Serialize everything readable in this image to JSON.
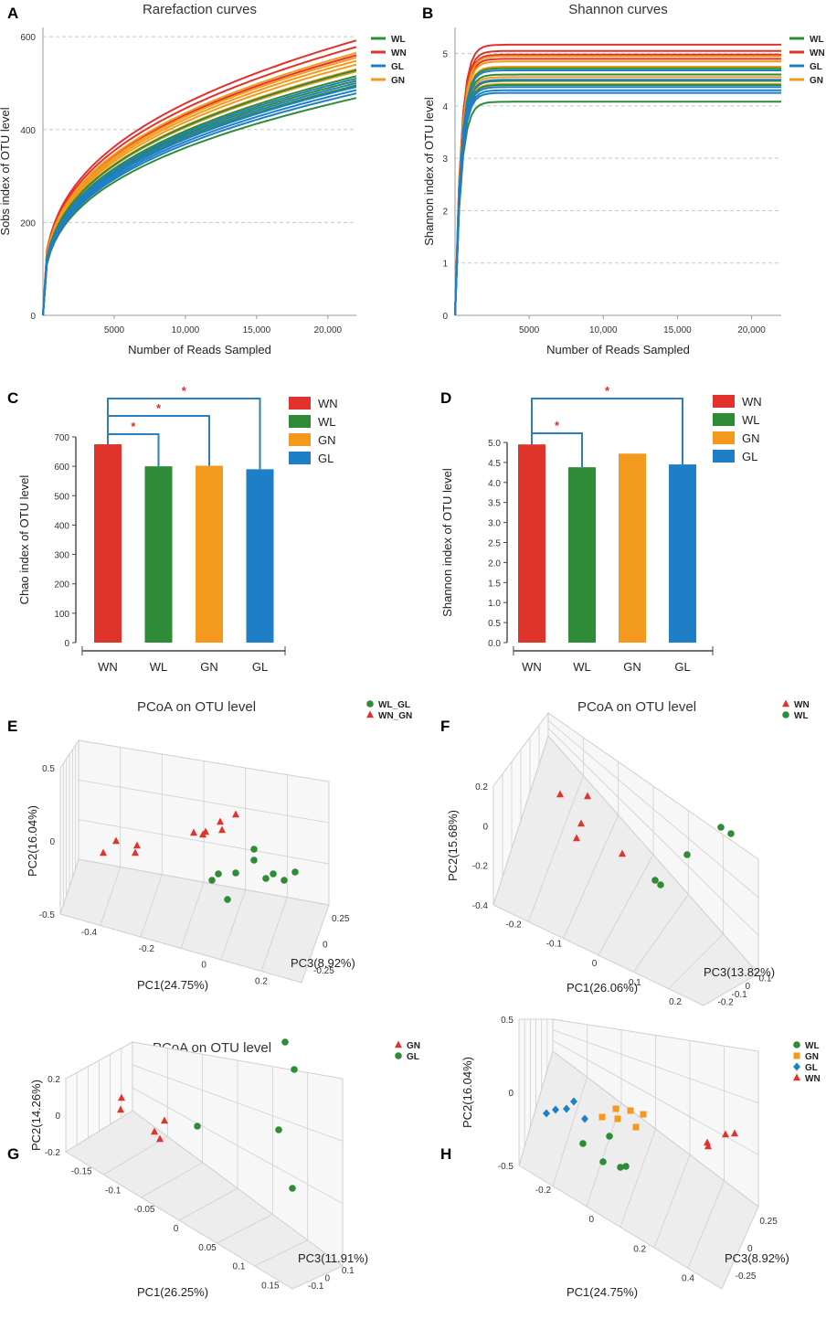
{
  "colors": {
    "WN": "#e0332b",
    "WL": "#2e8b36",
    "GN": "#f39a1e",
    "GL": "#1f7fc6",
    "bracket": "#2b7fbd",
    "star": "#d8312b"
  },
  "chart_data": [
    {
      "id": "A",
      "type": "line",
      "panel_label": "A",
      "title": "Rarefaction curves",
      "xlabel": "Number of Reads Sampled",
      "ylabel": "Sobs index of OTU level",
      "xlim": [
        0,
        22000
      ],
      "ylim": [
        0,
        620
      ],
      "x_ticks": [
        {
          "v": 5000,
          "label": "5000"
        },
        {
          "v": 10000,
          "label": "10,000"
        },
        {
          "v": 15000,
          "label": "15,000"
        },
        {
          "v": 20000,
          "label": "20,000"
        }
      ],
      "y_ticks": [
        {
          "v": 0,
          "label": "0"
        },
        {
          "v": 200,
          "label": "200"
        },
        {
          "v": 400,
          "label": "400"
        },
        {
          "v": 600,
          "label": "600"
        }
      ],
      "legend": [
        "WL",
        "WN",
        "GL",
        "GN"
      ],
      "series": [
        {
          "name": "WN",
          "final": [
            592,
            578,
            560
          ]
        },
        {
          "name": "GN",
          "final": [
            565,
            555,
            548,
            540,
            530,
            525
          ]
        },
        {
          "name": "WL",
          "final": [
            528,
            515,
            505,
            495,
            468
          ]
        },
        {
          "name": "GL",
          "final": [
            510,
            500,
            492,
            485,
            478
          ]
        }
      ]
    },
    {
      "id": "B",
      "type": "line",
      "panel_label": "B",
      "title": "Shannon curves",
      "xlabel": "Number of Reads Sampled",
      "ylabel": "Shannon index of OTU level",
      "xlim": [
        0,
        22000
      ],
      "ylim": [
        0,
        5.5
      ],
      "x_ticks": [
        {
          "v": 5000,
          "label": "5000"
        },
        {
          "v": 10000,
          "label": "10,000"
        },
        {
          "v": 15000,
          "label": "15,000"
        },
        {
          "v": 20000,
          "label": "20,000"
        }
      ],
      "y_ticks": [
        {
          "v": 0,
          "label": "0"
        },
        {
          "v": 1,
          "label": "1"
        },
        {
          "v": 2,
          "label": "2"
        },
        {
          "v": 3,
          "label": "3"
        },
        {
          "v": 4,
          "label": "4"
        },
        {
          "v": 5,
          "label": "5"
        }
      ],
      "legend": [
        "WL",
        "WN",
        "GL",
        "GN"
      ],
      "series": [
        {
          "name": "WN",
          "final": [
            5.17,
            5.05,
            4.98,
            4.9
          ]
        },
        {
          "name": "GN",
          "final": [
            4.95,
            4.85,
            4.75,
            4.55,
            4.48,
            4.42
          ]
        },
        {
          "name": "WL",
          "final": [
            4.72,
            4.6,
            4.48,
            4.4,
            4.08
          ]
        },
        {
          "name": "GL",
          "final": [
            4.68,
            4.5,
            4.36,
            4.3,
            4.25
          ]
        }
      ]
    },
    {
      "id": "C",
      "type": "bar",
      "panel_label": "C",
      "ylabel": "Chao index of OTU level",
      "categories": [
        "WN",
        "WL",
        "GN",
        "GL"
      ],
      "values": [
        675,
        600,
        602,
        590
      ],
      "ylim": [
        0,
        700
      ],
      "y_ticks": [
        "0",
        "100",
        "200",
        "300",
        "400",
        "500",
        "600",
        "700"
      ],
      "legend": [
        "WN",
        "WL",
        "GN",
        "GL"
      ],
      "significance": [
        {
          "from": "WN",
          "to": "WL",
          "mark": "*"
        },
        {
          "from": "WN",
          "to": "GN",
          "mark": "*"
        },
        {
          "from": "WN",
          "to": "GL",
          "mark": "*"
        }
      ]
    },
    {
      "id": "D",
      "type": "bar",
      "panel_label": "D",
      "ylabel": "Shannon index of OTU level",
      "categories": [
        "WN",
        "WL",
        "GN",
        "GL"
      ],
      "values": [
        4.95,
        4.38,
        4.72,
        4.45
      ],
      "ylim": [
        0,
        5.0
      ],
      "y_ticks": [
        "0.0",
        "0.5",
        "1.0",
        "1.5",
        "2.0",
        "2.5",
        "3.0",
        "3.5",
        "4.0",
        "4.5",
        "5.0"
      ],
      "legend": [
        "WN",
        "WL",
        "GN",
        "GL"
      ],
      "significance": [
        {
          "from": "WN",
          "to": "WL",
          "mark": "*"
        },
        {
          "from": "WN",
          "to": "GL",
          "mark": "*"
        }
      ]
    },
    {
      "id": "E",
      "type": "scatter",
      "panel_label": "E",
      "title": "PCoA on OTU level",
      "xlabel": "PC1(24.75%)",
      "ylabel": "PC2(16.04%)",
      "zlabel": "PC3(8.92%)",
      "legend": [
        {
          "name": "WL_GL",
          "marker": "circle",
          "color": "#2e8b36"
        },
        {
          "name": "WN_GN",
          "marker": "triangle",
          "color": "#e0332b"
        }
      ],
      "y_ticks": [
        "0.5",
        "0",
        "-0.5"
      ],
      "x_ticks": [
        "-0.4",
        "-0.2",
        "0",
        "0.2"
      ],
      "z_ticks": [
        "0.25",
        "0",
        "-0.25"
      ]
    },
    {
      "id": "F",
      "type": "scatter",
      "panel_label": "F",
      "title": "PCoA on OTU level",
      "xlabel": "PC1(26.06%)",
      "ylabel": "PC2(15.68%)",
      "zlabel": "PC3(13.82%)",
      "legend": [
        {
          "name": "WN",
          "marker": "triangle",
          "color": "#e0332b"
        },
        {
          "name": "WL",
          "marker": "circle",
          "color": "#2e8b36"
        }
      ],
      "y_ticks": [
        "0.2",
        "0",
        "-0.2",
        "-0.4"
      ],
      "x_ticks": [
        "-0.2",
        "-0.1",
        "0",
        "0.1",
        "0.2"
      ],
      "z_ticks": [
        "0.1",
        "0",
        "-0.1",
        "-0.2"
      ]
    },
    {
      "id": "G",
      "type": "scatter",
      "panel_label": "G",
      "title": "PCoA on OTU level",
      "xlabel": "PC1(26.25%)",
      "ylabel": "PC2(14.26%)",
      "zlabel": "PC3(11.91%)",
      "legend": [
        {
          "name": "GN",
          "marker": "triangle",
          "color": "#e0332b"
        },
        {
          "name": "GL",
          "marker": "circle",
          "color": "#2e8b36"
        }
      ],
      "y_ticks": [
        "0.2",
        "0",
        "-0.2"
      ],
      "x_ticks": [
        "-0.15",
        "-0.1",
        "-0.05",
        "0",
        "0.05",
        "0.1",
        "0.15"
      ],
      "z_ticks": [
        "0.1",
        "0",
        "-0.1"
      ]
    },
    {
      "id": "H",
      "type": "scatter",
      "panel_label": "H",
      "title": "PCoA on OTU level",
      "xlabel": "PC1(24.75%)",
      "ylabel": "PC2(16.04%)",
      "zlabel": "PC3(8.92%)",
      "legend": [
        {
          "name": "WL",
          "marker": "circle",
          "color": "#2e8b36"
        },
        {
          "name": "GN",
          "marker": "square",
          "color": "#f39a1e"
        },
        {
          "name": "GL",
          "marker": "diamond",
          "color": "#1f7fc6"
        },
        {
          "name": "WN",
          "marker": "triangle",
          "color": "#e0332b"
        }
      ],
      "y_ticks": [
        "0.5",
        "0",
        "-0.5"
      ],
      "x_ticks": [
        "-0.2",
        "0",
        "0.2",
        "0.4"
      ],
      "z_ticks": [
        "0.25",
        "0",
        "-0.25"
      ]
    }
  ]
}
